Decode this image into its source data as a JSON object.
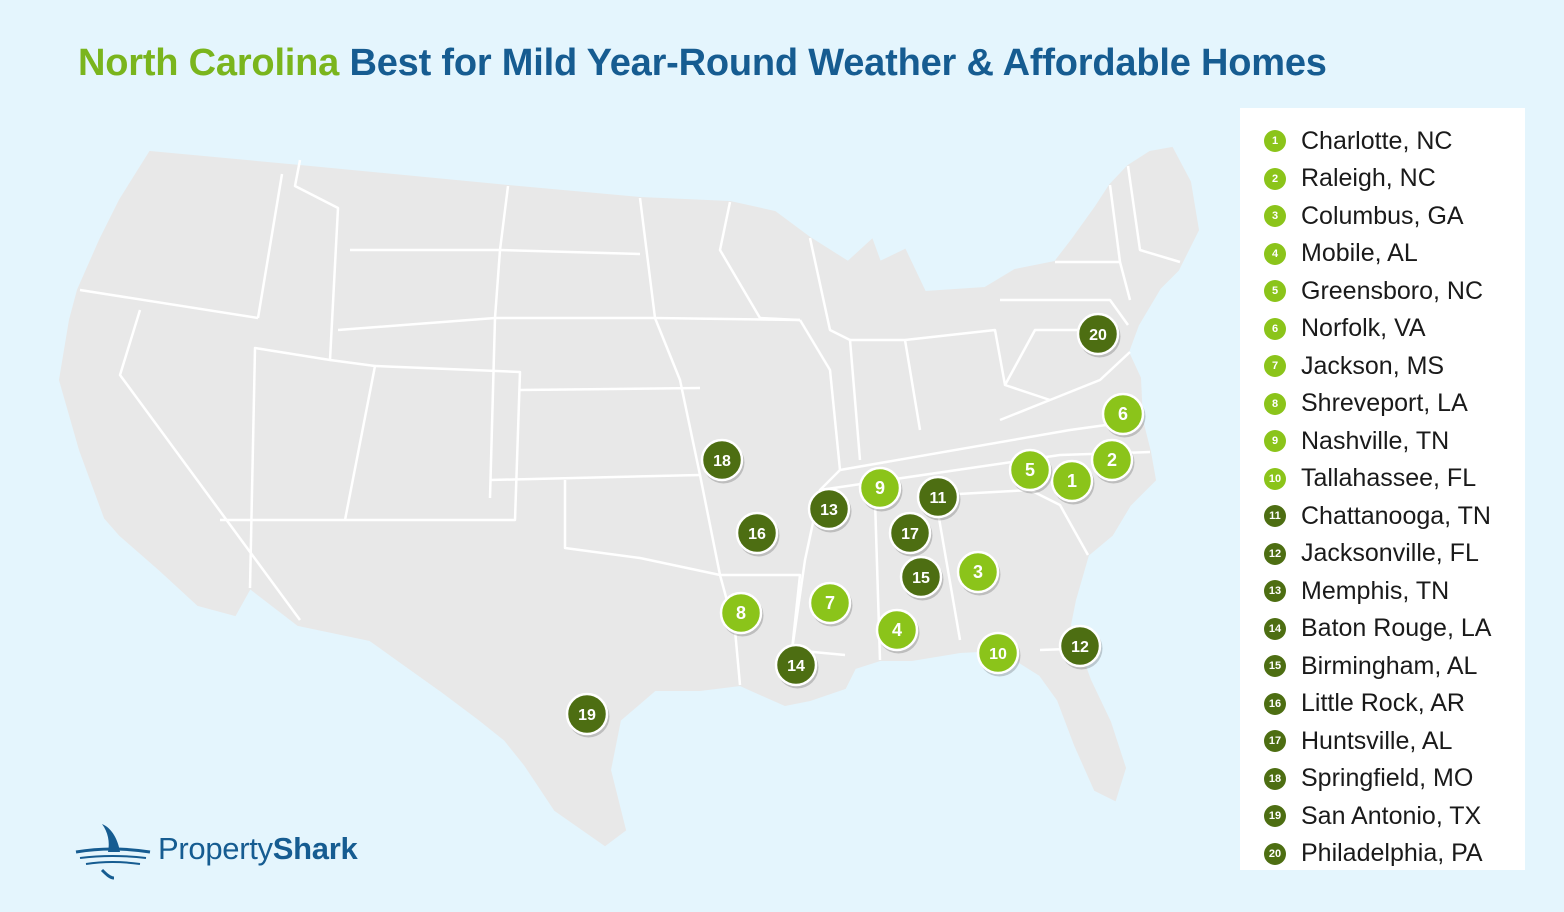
{
  "title": {
    "highlight": "North Carolina",
    "rest": "Best for Mild Year-Round Weather & Affordable Homes"
  },
  "colors": {
    "background": "#e4f5fd",
    "land": "#e8e8e8",
    "state_border": "#ffffff",
    "light_green": "#8bc41a",
    "dark_green": "#4d6e12",
    "title_green": "#7ab51d",
    "title_blue": "#165c91"
  },
  "cities": [
    {
      "rank": "1",
      "name": "Charlotte, NC",
      "shade": "light"
    },
    {
      "rank": "2",
      "name": "Raleigh, NC",
      "shade": "light"
    },
    {
      "rank": "3",
      "name": "Columbus, GA",
      "shade": "light"
    },
    {
      "rank": "4",
      "name": "Mobile, AL",
      "shade": "light"
    },
    {
      "rank": "5",
      "name": "Greensboro, NC",
      "shade": "light"
    },
    {
      "rank": "6",
      "name": "Norfolk, VA",
      "shade": "light"
    },
    {
      "rank": "7",
      "name": "Jackson, MS",
      "shade": "light"
    },
    {
      "rank": "8",
      "name": "Shreveport, LA",
      "shade": "light"
    },
    {
      "rank": "9",
      "name": "Nashville, TN",
      "shade": "light"
    },
    {
      "rank": "10",
      "name": "Tallahassee, FL",
      "shade": "light"
    },
    {
      "rank": "11",
      "name": "Chattanooga, TN",
      "shade": "dark"
    },
    {
      "rank": "12",
      "name": "Jacksonville, FL",
      "shade": "dark"
    },
    {
      "rank": "13",
      "name": "Memphis, TN",
      "shade": "dark"
    },
    {
      "rank": "14",
      "name": "Baton Rouge, LA",
      "shade": "dark"
    },
    {
      "rank": "15",
      "name": "Birmingham, AL",
      "shade": "dark"
    },
    {
      "rank": "16",
      "name": "Little Rock, AR",
      "shade": "dark"
    },
    {
      "rank": "17",
      "name": "Huntsville, AL",
      "shade": "dark"
    },
    {
      "rank": "18",
      "name": "Springfield, MO",
      "shade": "dark"
    },
    {
      "rank": "19",
      "name": "San Antonio, TX",
      "shade": "dark"
    },
    {
      "rank": "20",
      "name": "Philadelphia, PA",
      "shade": "dark"
    }
  ],
  "logo": {
    "word1": "Property",
    "word2": "Shark",
    "icon": "shark-fin-icon"
  }
}
